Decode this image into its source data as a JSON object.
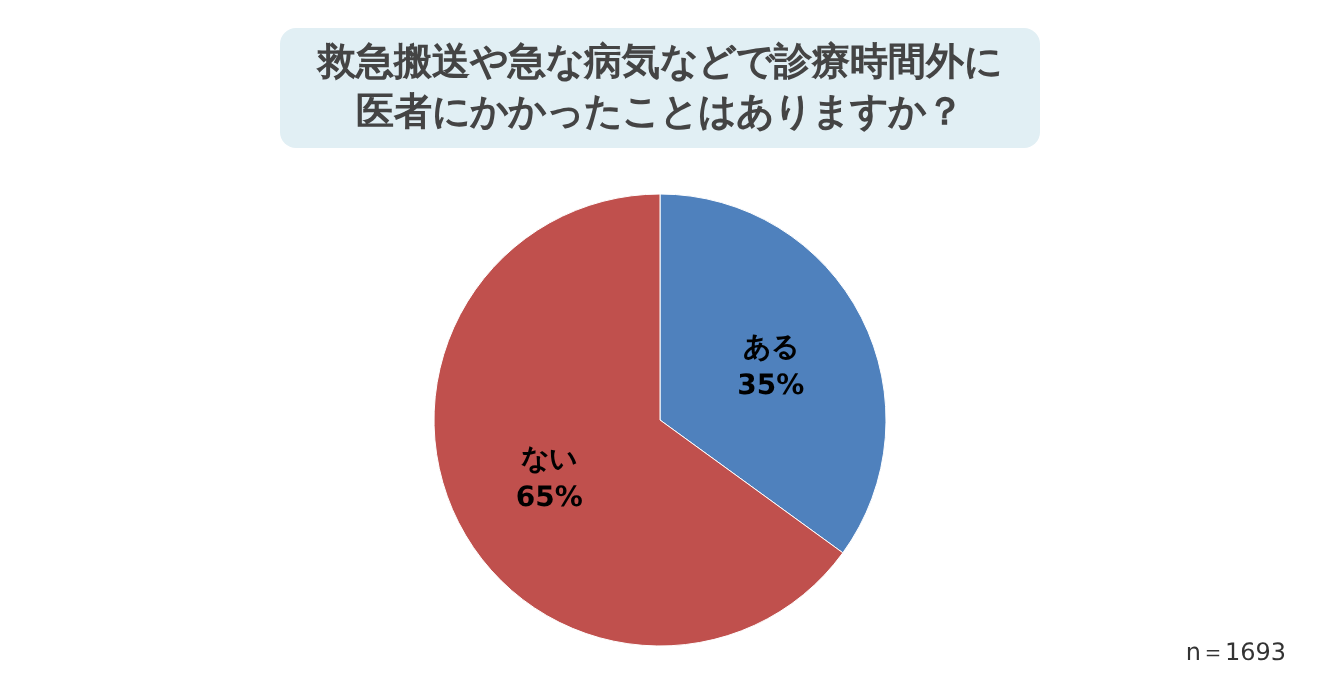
{
  "chart_data": {
    "type": "pie",
    "title": "救急搬送や急な病気などで診療時間外に医者にかかったことはありますか？",
    "categories": [
      "ある",
      "ない"
    ],
    "values": [
      35,
      65
    ],
    "value_labels": [
      "35%",
      "65%"
    ],
    "colors": [
      "#4f81bd",
      "#c0504d"
    ],
    "annotations": [
      "n＝1693"
    ]
  }
}
